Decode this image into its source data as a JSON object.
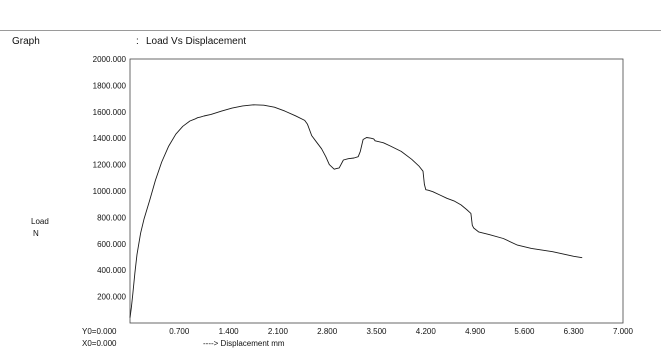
{
  "header": {
    "graph_label": "Graph",
    "colon": ":",
    "title": "Load Vs Displacement"
  },
  "chart_data": {
    "type": "line",
    "title": "Load Vs Displacement",
    "ylabel_line1": "Load",
    "ylabel_line2": "N",
    "xlabel": "----> Displacement mm",
    "y0_label": "Y0=0.000",
    "x0_label": "X0=0.000",
    "xlim": [
      0,
      7.0
    ],
    "ylim": [
      0,
      2000
    ],
    "xticks": [
      "0.700",
      "1.400",
      "2.100",
      "2.800",
      "3.500",
      "4.200",
      "4.900",
      "5.600",
      "6.300",
      "7.000"
    ],
    "yticks": [
      "2000.000",
      "1800.000",
      "1600.000",
      "1400.000",
      "1200.000",
      "1000.000",
      "800.000",
      "600.000",
      "400.000",
      "200.000"
    ],
    "grid": false,
    "series": [
      {
        "x": [
          0.0,
          0.02,
          0.04,
          0.07,
          0.1,
          0.15,
          0.2,
          0.28,
          0.36,
          0.45,
          0.55,
          0.65,
          0.75,
          0.85,
          0.92,
          0.96,
          1.0,
          1.05,
          1.15,
          1.3,
          1.45,
          1.6,
          1.75,
          1.9,
          2.05,
          2.2,
          2.35,
          2.48,
          2.52,
          2.58,
          2.65,
          2.72,
          2.78,
          2.83,
          2.9,
          2.93,
          2.97,
          3.03,
          3.1,
          3.18,
          3.24,
          3.27,
          3.31,
          3.36,
          3.42,
          3.46,
          3.48,
          3.6,
          3.7,
          3.85,
          4.0,
          4.1,
          4.16,
          4.18,
          4.2,
          4.24,
          4.3,
          4.4,
          4.5,
          4.6,
          4.7,
          4.78,
          4.84,
          4.86,
          4.88,
          4.95,
          5.1,
          5.3,
          5.5,
          5.7,
          6.0,
          6.3,
          6.42
        ],
        "y": [
          40,
          120,
          220,
          380,
          520,
          680,
          790,
          930,
          1080,
          1220,
          1340,
          1430,
          1490,
          1530,
          1545,
          1555,
          1560,
          1568,
          1580,
          1605,
          1628,
          1645,
          1653,
          1650,
          1635,
          1605,
          1570,
          1535,
          1505,
          1420,
          1370,
          1320,
          1260,
          1200,
          1165,
          1170,
          1175,
          1235,
          1245,
          1250,
          1260,
          1300,
          1390,
          1405,
          1400,
          1395,
          1380,
          1365,
          1340,
          1300,
          1240,
          1190,
          1150,
          1050,
          1010,
          1005,
          995,
          970,
          945,
          925,
          895,
          860,
          830,
          740,
          720,
          690,
          670,
          640,
          590,
          565,
          540,
          505,
          495
        ]
      }
    ]
  },
  "colors": {
    "line": "#1a1a1a",
    "axis": "#444444",
    "rule": "#9a9a9a"
  }
}
